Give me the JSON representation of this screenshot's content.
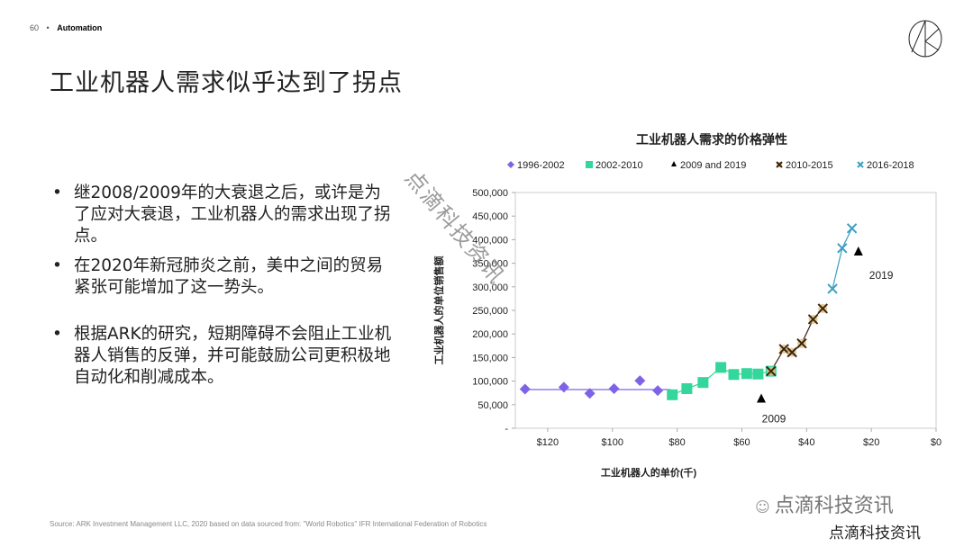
{
  "header": {
    "page_number": "60",
    "separator": "•",
    "section": "Automation"
  },
  "title": "工业机器人需求似乎达到了拐点",
  "bullets": [
    "继2008/2009年的大衰退之后，或许是为了应对大衰退，工业机器人的需求出现了拐点。",
    "在2020年新冠肺炎之前，美中之间的贸易紧张可能增加了这一势头。",
    "根据ARK的研究，短期障碍不会阻止工业机器人销售的反弹，并可能鼓励公司更积极地自动化和削减成本。"
  ],
  "source": "Source: ARK Investment Management LLC, 2020 based on data sourced from: \"World Robotics\" IFR International Federation of Robotics",
  "watermark": {
    "wechat": "点滴科技资讯",
    "text": "点滴科技资讯",
    "diagonal": "点滴科技资讯"
  },
  "logo_icon": "ark-logo-icon",
  "chart_data": {
    "type": "scatter",
    "title": "工业机器人需求的价格弹性",
    "xlabel": "工业机器人的单价(千)",
    "ylabel": "工业机器人的单位销售额",
    "xlim": [
      130,
      0
    ],
    "x_reversed": true,
    "ylim": [
      0,
      500000
    ],
    "xticks": [
      120,
      100,
      80,
      60,
      40,
      20,
      0
    ],
    "xtick_labels": [
      "$120",
      "$100",
      "$80",
      "$60",
      "$40",
      "$20",
      "$0"
    ],
    "yticks": [
      0,
      50000,
      100000,
      150000,
      200000,
      250000,
      300000,
      350000,
      400000,
      450000,
      500000
    ],
    "ytick_labels": [
      "-",
      "50,000",
      "100,000",
      "150,000",
      "200,000",
      "250,000",
      "300,000",
      "350,000",
      "400,000",
      "450,000",
      "500,000"
    ],
    "legend_position": "top",
    "grid": false,
    "series": [
      {
        "name": "1996-2002",
        "marker": "diamond",
        "color": "#7f63e6",
        "trend": [
          [
            127,
            82000
          ],
          [
            82,
            82000
          ]
        ],
        "x": [
          127,
          115,
          107,
          99.5,
          91.5,
          86
        ],
        "y": [
          83000,
          87000,
          74000,
          84000,
          101000,
          80000
        ]
      },
      {
        "name": "2002-2010",
        "marker": "square",
        "color": "#33d69b",
        "connected": true,
        "x": [
          81.5,
          77,
          72,
          66.5,
          62.5,
          58.5,
          55,
          51
        ],
        "y": [
          71000,
          84000,
          97000,
          129000,
          114000,
          116000,
          115000,
          121000
        ]
      },
      {
        "name": "2009 and 2019",
        "marker": "triangle",
        "color": "#000000",
        "x": [
          54,
          24
        ],
        "y": [
          62000,
          374000
        ],
        "labels": [
          "2009",
          "2019"
        ]
      },
      {
        "name": "2010-2015",
        "marker": "x",
        "color": "#3b2410",
        "fill": "#e3c07a",
        "connected": true,
        "x": [
          51,
          47,
          44.5,
          41.5,
          38,
          35
        ],
        "y": [
          121000,
          168000,
          161000,
          180000,
          231000,
          254000
        ]
      },
      {
        "name": "2016-2018",
        "marker": "x",
        "color": "#3b9fc0",
        "connected": true,
        "x": [
          32,
          29,
          26
        ],
        "y": [
          296000,
          382000,
          424000
        ]
      }
    ]
  }
}
